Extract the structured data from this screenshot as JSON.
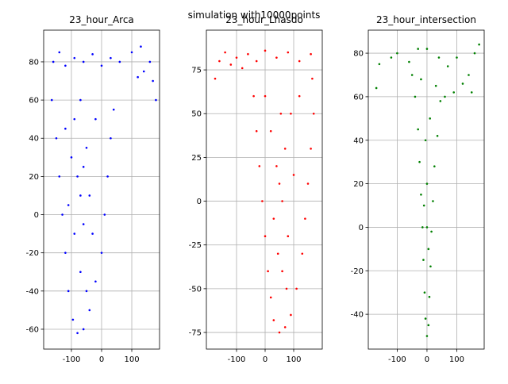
{
  "title": "simulation with10000points",
  "chart_data": [
    {
      "type": "scatter",
      "title": "23_hour_Arca",
      "color": "#0000ff",
      "grid": true,
      "xlim": [
        -192,
        192
      ],
      "ylim": [
        -70.4,
        96.6
      ],
      "xticks": [
        -100,
        0,
        100
      ],
      "yticks": [
        -60,
        -40,
        -20,
        0,
        20,
        40,
        60,
        80
      ],
      "x": [
        -160,
        -140,
        -120,
        -90,
        -60,
        -30,
        0,
        30,
        60,
        100,
        130,
        160,
        180,
        170,
        140,
        120,
        -165,
        -150,
        -140,
        -130,
        -120,
        -110,
        -95,
        -80,
        -60,
        -40,
        -20,
        0,
        10,
        20,
        30,
        40,
        -100,
        -80,
        -70,
        -60,
        -50,
        -90,
        -70,
        -40,
        -30,
        -90,
        -70,
        -50,
        -110,
        -20,
        -120,
        -60
      ],
      "y": [
        80,
        85,
        78,
        82,
        80,
        84,
        78,
        82,
        80,
        85,
        88,
        80,
        60,
        70,
        75,
        72,
        60,
        40,
        20,
        0,
        -20,
        -40,
        -55,
        -62,
        -60,
        -50,
        -35,
        -20,
        0,
        20,
        40,
        55,
        30,
        20,
        10,
        25,
        35,
        50,
        60,
        10,
        -10,
        -10,
        -30,
        -40,
        5,
        50,
        45,
        -5
      ]
    },
    {
      "type": "scatter",
      "title": "23_hour_Lhasdo",
      "color": "#ff0000",
      "grid": true,
      "xlim": [
        -205.6,
        200
      ],
      "ylim": [
        -84.5,
        97.7
      ],
      "xticks": [
        -100,
        0,
        100
      ],
      "yticks": [
        -75,
        -50,
        -25,
        0,
        25,
        50,
        75
      ],
      "x": [
        -175,
        -160,
        -140,
        -120,
        -100,
        -80,
        -60,
        -30,
        0,
        40,
        80,
        120,
        160,
        -40,
        -30,
        -20,
        -10,
        0,
        10,
        20,
        30,
        50,
        70,
        90,
        110,
        130,
        140,
        150,
        160,
        170,
        165,
        50,
        40,
        60,
        70,
        30,
        80,
        20,
        90,
        100,
        60,
        45,
        120,
        0,
        55,
        75
      ],
      "y": [
        70,
        80,
        85,
        78,
        82,
        76,
        84,
        80,
        86,
        82,
        85,
        80,
        84,
        60,
        40,
        20,
        0,
        -20,
        -40,
        -55,
        -68,
        -75,
        -72,
        -65,
        -50,
        -30,
        -10,
        10,
        30,
        50,
        70,
        10,
        20,
        0,
        30,
        -10,
        -20,
        40,
        50,
        15,
        -40,
        -30,
        60,
        60,
        50,
        -50
      ]
    },
    {
      "type": "scatter",
      "title": "23_hour_intersection",
      "color": "#008000",
      "grid": true,
      "xlim": [
        -197,
        192
      ],
      "ylim": [
        -56,
        90.6
      ],
      "xticks": [
        -100,
        0,
        100
      ],
      "yticks": [
        -40,
        -20,
        0,
        20,
        40,
        60,
        80
      ],
      "x": [
        -170,
        -160,
        -120,
        -100,
        -60,
        -30,
        0,
        40,
        70,
        100,
        140,
        160,
        175,
        150,
        120,
        -50,
        -40,
        -30,
        -25,
        -20,
        -15,
        -12,
        -8,
        -5,
        0,
        5,
        8,
        12,
        15,
        20,
        25,
        35,
        45,
        0,
        -5,
        10,
        0,
        -10,
        5,
        30,
        -20,
        90,
        60
      ],
      "y": [
        64,
        75,
        78,
        80,
        76,
        82,
        82,
        78,
        74,
        78,
        70,
        80,
        84,
        62,
        66,
        70,
        60,
        45,
        30,
        15,
        0,
        -15,
        -30,
        -42,
        -50,
        -45,
        -32,
        -18,
        -2,
        12,
        28,
        42,
        58,
        20,
        40,
        50,
        0,
        10,
        -10,
        65,
        68,
        62,
        60
      ]
    }
  ]
}
